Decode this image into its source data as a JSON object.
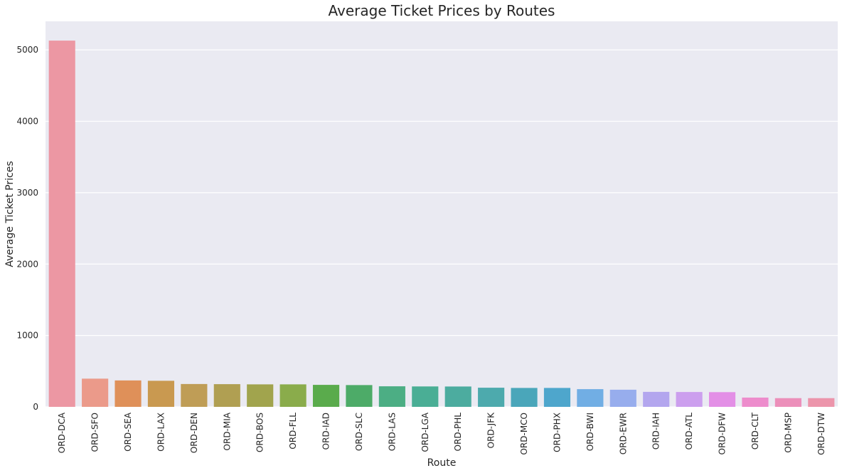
{
  "chart_data": {
    "type": "bar",
    "title": "Average Ticket Prices by Routes",
    "xlabel": "Route",
    "ylabel": "Average Ticket Prices",
    "ylim": [
      0,
      5400
    ],
    "yticks": [
      0,
      1000,
      2000,
      3000,
      4000,
      5000
    ],
    "grid": true,
    "categories": [
      "ORD-DCA",
      "ORD-SFO",
      "ORD-SEA",
      "ORD-LAX",
      "ORD-DEN",
      "ORD-MIA",
      "ORD-BOS",
      "ORD-FLL",
      "ORD-IAD",
      "ORD-SLC",
      "ORD-LAS",
      "ORD-LGA",
      "ORD-PHL",
      "ORD-JFK",
      "ORD-MCO",
      "ORD-PHX",
      "ORD-BWI",
      "ORD-EWR",
      "ORD-IAH",
      "ORD-ATL",
      "ORD-DFW",
      "ORD-CLT",
      "ORD-MSP",
      "ORD-DTW"
    ],
    "values": [
      5130,
      395,
      370,
      365,
      320,
      318,
      315,
      315,
      308,
      305,
      288,
      286,
      285,
      268,
      265,
      265,
      248,
      240,
      210,
      208,
      206,
      130,
      122,
      122
    ],
    "colors": [
      "#ec97a3",
      "#eb9a8a",
      "#df9059",
      "#c99950",
      "#bf9d56",
      "#b09f52",
      "#a1a44d",
      "#8aac4b",
      "#5aab4c",
      "#4dab68",
      "#4cae84",
      "#4aae95",
      "#4cac9f",
      "#4daaad",
      "#4aa6ba",
      "#4ea6cc",
      "#71aee4",
      "#97aded",
      "#b3a6ee",
      "#cc9fee",
      "#e38fe6",
      "#ed8ccc",
      "#ec8fba",
      "#ec95ab"
    ],
    "background": "#eaeaf2"
  }
}
